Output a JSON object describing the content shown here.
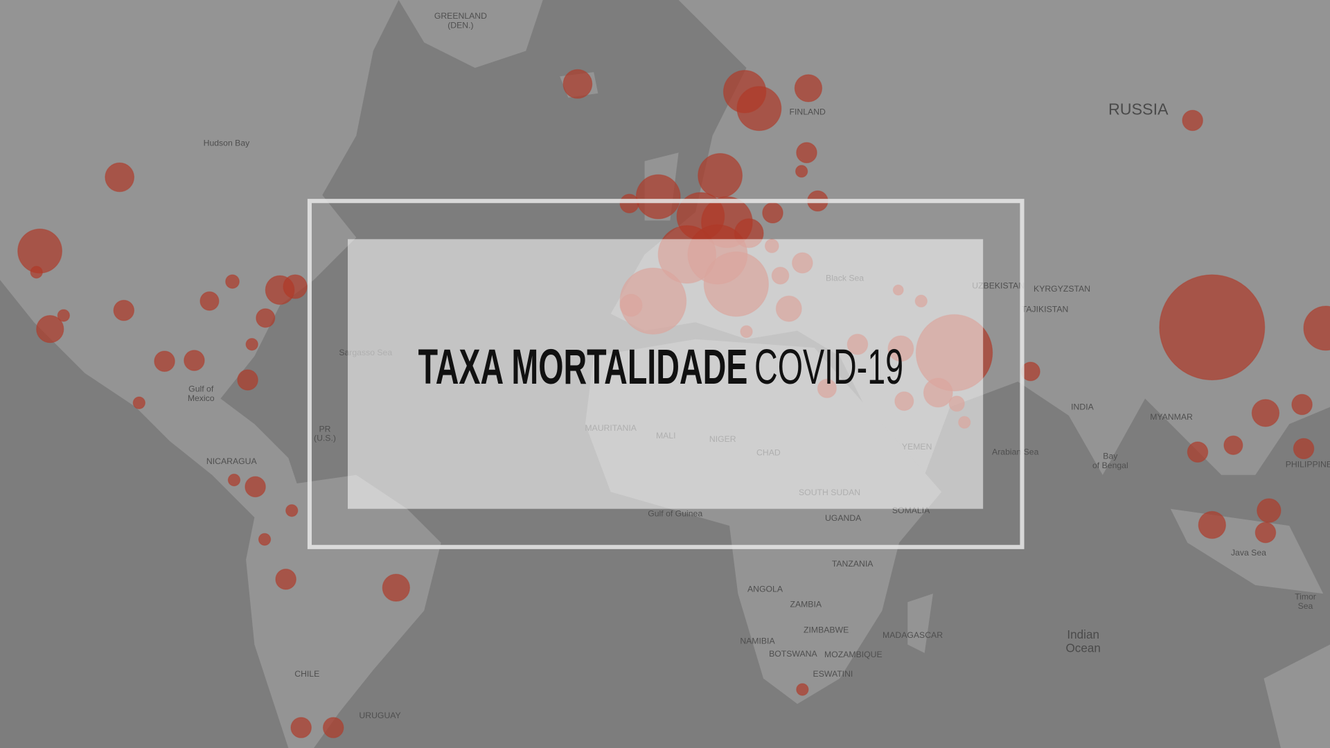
{
  "title": {
    "bold": "TAXA MORTALIDADE",
    "light": "COVID-19"
  },
  "map_labels": [
    [
      "GREENLAND",
      "(DEN.)"
    ],
    [
      "Hudson Bay"
    ],
    [
      "FINLAND"
    ],
    [
      "RUSSIA"
    ],
    [
      "Black Sea"
    ],
    [
      "UZBEKISTAN"
    ],
    [
      "KYRGYZSTAN"
    ],
    [
      "TAJIKISTAN"
    ],
    [
      "Sargasso Sea"
    ],
    [
      "INDIA"
    ],
    [
      "MYANMAR"
    ],
    [
      "Gulf of",
      "Mexico"
    ],
    [
      "PR",
      "(U.S.)"
    ],
    [
      "MAURITANIA"
    ],
    [
      "MALI"
    ],
    [
      "NIGER"
    ],
    [
      "CHAD"
    ],
    [
      "YEMEN"
    ],
    [
      "Arabian Sea"
    ],
    [
      "Bay",
      "of Bengal"
    ],
    [
      "PHILIPPINE"
    ],
    [
      "NICARAGUA"
    ],
    [
      "SOUTH SUDAN"
    ],
    [
      "Gulf of Guinea"
    ],
    [
      "UGANDA"
    ],
    [
      "SOMALIA"
    ],
    [
      "Java Sea"
    ],
    [
      "TANZANIA"
    ],
    [
      "ANGOLA"
    ],
    [
      "ZAMBIA"
    ],
    [
      "Timor",
      "Sea"
    ],
    [
      "ZIMBABWE"
    ],
    [
      "MADAGASCAR"
    ],
    [
      "Indian",
      "Ocean"
    ],
    [
      "NAMIBIA"
    ],
    [
      "BOTSWANA"
    ],
    [
      "MOZAMBIQUE"
    ],
    [
      "CHILE"
    ],
    [
      "ESWATINI"
    ],
    [
      "URUGUAY"
    ]
  ]
}
